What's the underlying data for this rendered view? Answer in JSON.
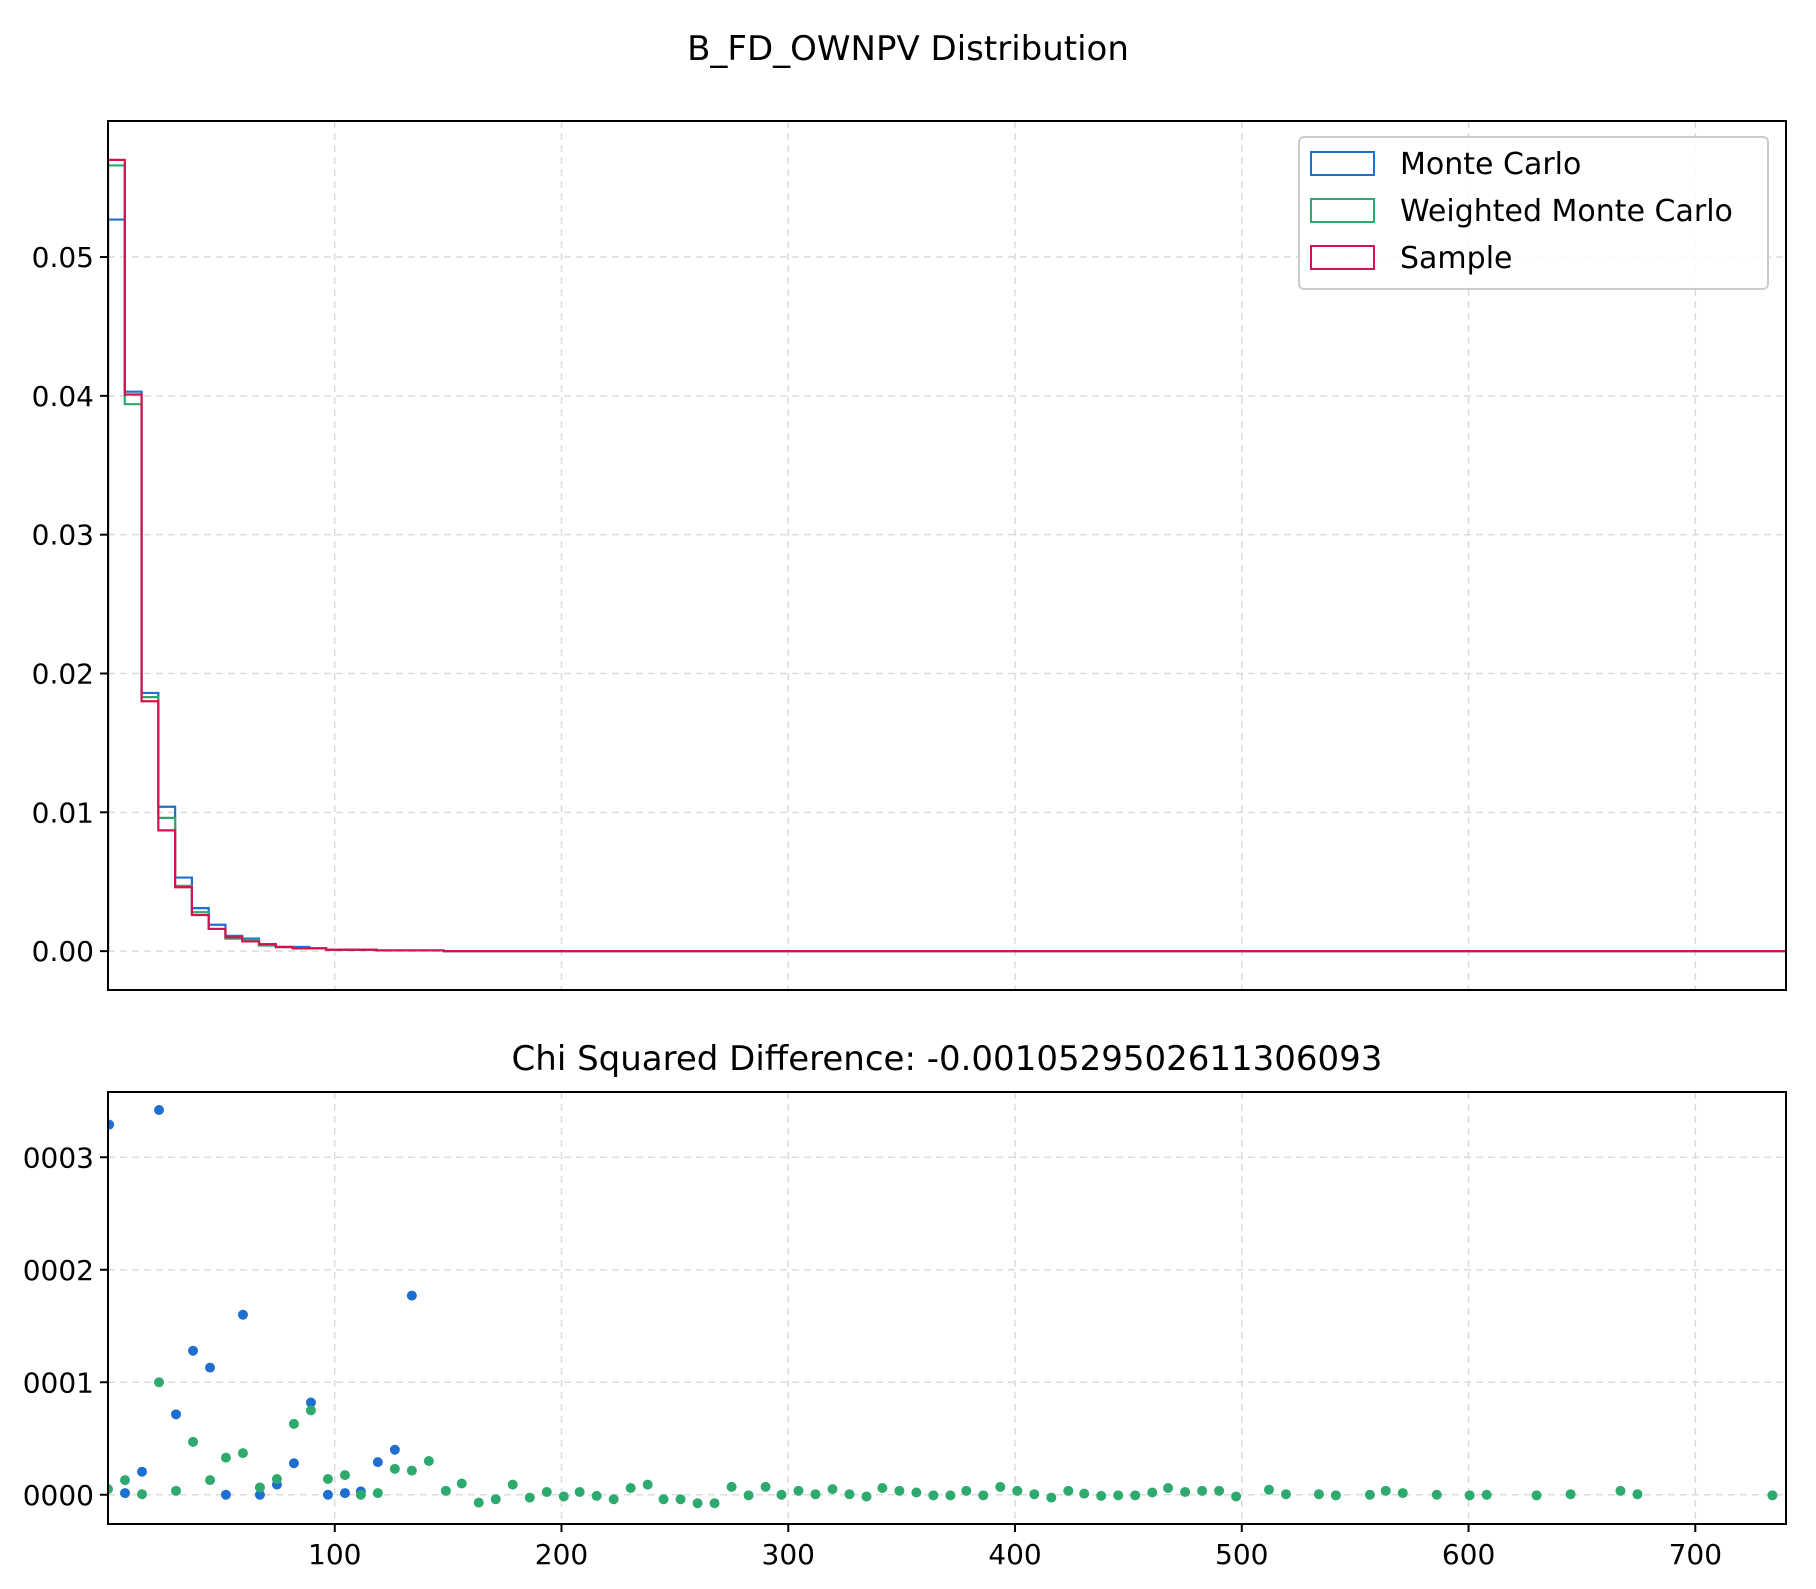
{
  "figure": {
    "title": "B_FD_OWNPV Distribution",
    "colors": {
      "monte_carlo": "#1f6fd1",
      "weighted_monte_carlo": "#2eaa6e",
      "sample": "#d6124e",
      "grid": "#dcdcdc"
    }
  },
  "chart_data": [
    {
      "type": "line",
      "subtype": "step-histogram",
      "title": "B_FD_OWNPV Distribution",
      "xlim": [
        0,
        740
      ],
      "ylim": [
        -0.0028,
        0.0598
      ],
      "x_ticks": [
        100,
        200,
        300,
        400,
        500,
        600,
        700
      ],
      "x_ticks_visible": false,
      "y_ticks": [
        0.0,
        0.01,
        0.02,
        0.03,
        0.04,
        0.05
      ],
      "y_tick_labels": [
        "0.00",
        "0.01",
        "0.02",
        "0.03",
        "0.04",
        "0.05"
      ],
      "grid": true,
      "legend": {
        "position": "top-right",
        "entries": [
          "Monte Carlo",
          "Weighted Monte Carlo",
          "Sample"
        ]
      },
      "bin_edges": [
        0,
        7.4,
        14.8,
        22.2,
        29.6,
        37.0,
        44.4,
        51.8,
        59.2,
        66.6,
        74.0,
        81.4,
        88.8,
        96.2,
        103.6,
        111.0,
        118.4,
        125.8,
        133.2,
        140.6,
        148.0,
        740
      ],
      "series": [
        {
          "name": "Monte Carlo",
          "values": [
            0.0527,
            0.0403,
            0.0186,
            0.0104,
            0.0053,
            0.0031,
            0.0019,
            0.0011,
            0.0009,
            0.0005,
            0.0003,
            0.0003,
            0.0002,
            0.0001,
            0.0001,
            0.0001,
            5e-05,
            5e-05,
            5e-05,
            5e-05,
            0.0
          ]
        },
        {
          "name": "Weighted Monte Carlo",
          "values": [
            0.0566,
            0.0394,
            0.0183,
            0.0096,
            0.0047,
            0.0028,
            0.0016,
            0.0009,
            0.0008,
            0.0004,
            0.0003,
            0.0002,
            0.0002,
            0.0001,
            0.0001,
            0.0001,
            5e-05,
            5e-05,
            5e-05,
            5e-05,
            0.0
          ]
        },
        {
          "name": "Sample",
          "values": [
            0.057,
            0.0401,
            0.018,
            0.0087,
            0.0046,
            0.0026,
            0.0016,
            0.001,
            0.0007,
            0.0005,
            0.0003,
            0.0002,
            0.0002,
            0.0001,
            0.0001,
            0.0001,
            5e-05,
            5e-05,
            5e-05,
            5e-05,
            0.0
          ]
        }
      ]
    },
    {
      "type": "scatter",
      "title": "Chi Squared Difference: -0.0010529502611306093",
      "xlim": [
        0,
        740
      ],
      "ylim": [
        -2.6e-05,
        0.000358
      ],
      "x_ticks": [
        100,
        200,
        300,
        400,
        500,
        600,
        700
      ],
      "x_tick_labels": [
        "100",
        "200",
        "300",
        "400",
        "500",
        "600",
        "700"
      ],
      "y_ticks": [
        0.0,
        0.0001,
        0.0002,
        0.0003
      ],
      "y_tick_labels": [
        "0000",
        "0001",
        "0002",
        "0003"
      ],
      "grid": true,
      "series": [
        {
          "name": "",
          "color_key": "monte_carlo",
          "points": [
            [
              0.5,
              0.000329
            ],
            [
              7.5,
              1.5e-06
            ],
            [
              15,
              2.05e-05
            ],
            [
              22.5,
              0.000342
            ],
            [
              30,
              7.15e-05
            ],
            [
              37.5,
              0.000128
            ],
            [
              45,
              0.000113
            ],
            [
              52,
              0.0
            ],
            [
              59.5,
              0.00016
            ],
            [
              67,
              0.0
            ],
            [
              74.5,
              9e-06
            ],
            [
              82,
              2.8e-05
            ],
            [
              89.5,
              8.2e-05
            ],
            [
              97,
              0.0
            ],
            [
              104.5,
              1.5e-06
            ],
            [
              111.5,
              3e-06
            ],
            [
              119,
              2.9e-05
            ],
            [
              126.5,
              4e-05
            ],
            [
              134,
              0.000177
            ]
          ]
        },
        {
          "name": "",
          "color_key": "weighted_monte_carlo",
          "points": [
            [
              0,
              5e-06
            ],
            [
              7.5,
              1.3e-05
            ],
            [
              15,
              5e-07
            ],
            [
              22.5,
              0.0001
            ],
            [
              30,
              3.5e-06
            ],
            [
              37.5,
              4.7e-05
            ],
            [
              45,
              1.3e-05
            ],
            [
              52,
              3.3e-05
            ],
            [
              59.5,
              3.7e-05
            ],
            [
              67,
              6.5e-06
            ],
            [
              74.5,
              1.4e-05
            ],
            [
              82,
              6.3e-05
            ],
            [
              89.5,
              7.5e-05
            ],
            [
              97,
              1.4e-05
            ],
            [
              104.5,
              1.75e-05
            ],
            [
              111.5,
              0.0
            ],
            [
              119,
              1.5e-06
            ],
            [
              126.5,
              2.3e-05
            ],
            [
              134,
              2.15e-05
            ],
            [
              141.5,
              3e-05
            ],
            [
              149,
              3.5e-06
            ],
            [
              156,
              1e-05
            ],
            [
              163.5,
              -7e-06
            ],
            [
              171,
              -4e-06
            ],
            [
              178.5,
              9e-06
            ],
            [
              186,
              -2.5e-06
            ],
            [
              193.5,
              2.5e-06
            ],
            [
              201,
              -1.5e-06
            ],
            [
              208,
              2.5e-06
            ],
            [
              215.5,
              -1e-06
            ],
            [
              223,
              -4e-06
            ],
            [
              230.5,
              6e-06
            ],
            [
              238,
              9e-06
            ],
            [
              245,
              -4e-06
            ],
            [
              252.5,
              -4e-06
            ],
            [
              260,
              -7.5e-06
            ],
            [
              267.5,
              -7.5e-06
            ],
            [
              275,
              7e-06
            ],
            [
              282.5,
              -5e-07
            ],
            [
              290,
              7e-06
            ],
            [
              297,
              0.0
            ],
            [
              304.5,
              3.5e-06
            ],
            [
              312,
              5e-07
            ],
            [
              319.5,
              5e-06
            ],
            [
              327,
              5e-07
            ],
            [
              334.5,
              -1.5e-06
            ],
            [
              341.5,
              6e-06
            ],
            [
              349,
              3.5e-06
            ],
            [
              356.5,
              2e-06
            ],
            [
              364,
              -5e-07
            ],
            [
              371.5,
              -5e-07
            ],
            [
              378.5,
              3.5e-06
            ],
            [
              386,
              -5e-07
            ],
            [
              393.5,
              7e-06
            ],
            [
              401,
              3.5e-06
            ],
            [
              408.5,
              5e-07
            ],
            [
              416,
              -2.5e-06
            ],
            [
              423.5,
              3.5e-06
            ],
            [
              430.5,
              1e-06
            ],
            [
              438,
              -1e-06
            ],
            [
              445.5,
              -5e-07
            ],
            [
              453,
              -5e-07
            ],
            [
              460.5,
              2e-06
            ],
            [
              467.5,
              6e-06
            ],
            [
              475,
              2.5e-06
            ],
            [
              482.5,
              3.5e-06
            ],
            [
              490,
              3.5e-06
            ],
            [
              497.5,
              -1.5e-06
            ],
            [
              512,
              4.5e-06
            ],
            [
              519.5,
              5e-07
            ],
            [
              534,
              5e-07
            ],
            [
              541.5,
              -5e-07
            ],
            [
              556.5,
              0.0
            ],
            [
              563.5,
              3.5e-06
            ],
            [
              571,
              1.5e-06
            ],
            [
              586,
              0.0
            ],
            [
              600.5,
              -5e-07
            ],
            [
              608,
              0.0
            ],
            [
              630,
              -5e-07
            ],
            [
              645,
              5e-07
            ],
            [
              667,
              3.5e-06
            ],
            [
              674.5,
              5e-07
            ],
            [
              734,
              -5e-07
            ]
          ]
        }
      ]
    }
  ]
}
